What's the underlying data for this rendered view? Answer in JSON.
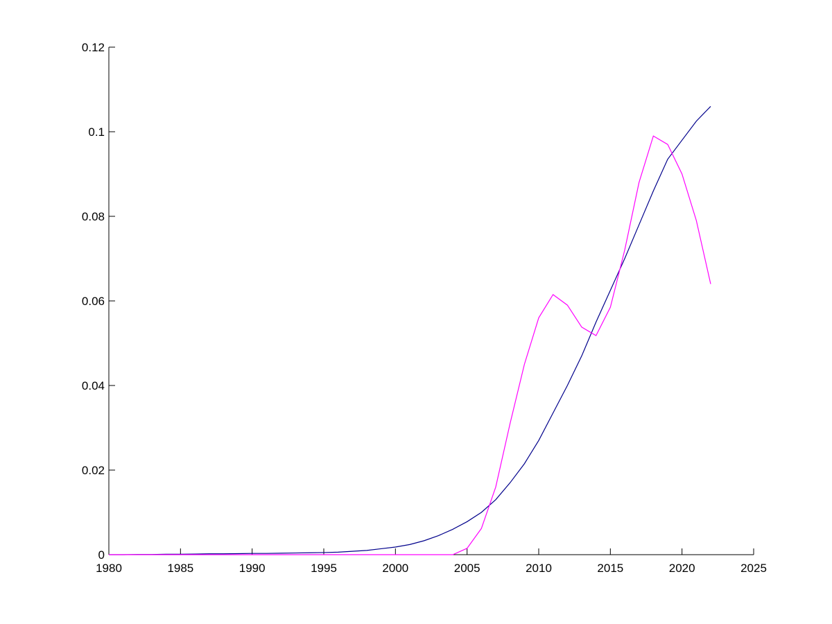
{
  "chart_data": {
    "type": "line",
    "x": [
      1980,
      1981,
      1982,
      1983,
      1984,
      1985,
      1986,
      1987,
      1988,
      1989,
      1990,
      1991,
      1992,
      1993,
      1994,
      1995,
      1996,
      1997,
      1998,
      1999,
      2000,
      2001,
      2002,
      2003,
      2004,
      2005,
      2006,
      2007,
      2008,
      2009,
      2010,
      2011,
      2012,
      2013,
      2014,
      2015,
      2016,
      2017,
      2018,
      2019,
      2020,
      2021,
      2022
    ],
    "series": [
      {
        "color": "#00008b",
        "values": [
          0,
          0,
          5e-05,
          5e-05,
          0.0001,
          0.0001,
          0.00015,
          0.0002,
          0.0002,
          0.00025,
          0.0003,
          0.0003,
          0.00035,
          0.0004,
          0.00045,
          0.0005,
          0.0006,
          0.0008,
          0.001,
          0.0014,
          0.0018,
          0.0024,
          0.0033,
          0.0045,
          0.006,
          0.0078,
          0.01,
          0.013,
          0.017,
          0.0215,
          0.027,
          0.0335,
          0.04,
          0.047,
          0.055,
          0.0625,
          0.07,
          0.078,
          0.086,
          0.0935,
          0.098,
          0.1025,
          0.106
        ]
      },
      {
        "color": "#ff00ff",
        "values": [
          0,
          0,
          0,
          0,
          0,
          0,
          0,
          0,
          0,
          0,
          0,
          0,
          0,
          0,
          0,
          0,
          0,
          0,
          0,
          0,
          0,
          0,
          0,
          0,
          0,
          0.0015,
          0.0062,
          0.016,
          0.031,
          0.045,
          0.056,
          0.0615,
          0.059,
          0.0538,
          0.0518,
          0.0585,
          0.072,
          0.088,
          0.099,
          0.097,
          0.09,
          0.079,
          0.064
        ]
      }
    ],
    "xlim": [
      1980,
      2025
    ],
    "xticks": [
      1980,
      1985,
      1990,
      1995,
      2000,
      2005,
      2010,
      2015,
      2020,
      2025
    ],
    "ylim": [
      0,
      0.12
    ],
    "yticks": [
      0,
      0.02,
      0.04,
      0.06,
      0.08,
      0.1,
      0.12
    ]
  }
}
